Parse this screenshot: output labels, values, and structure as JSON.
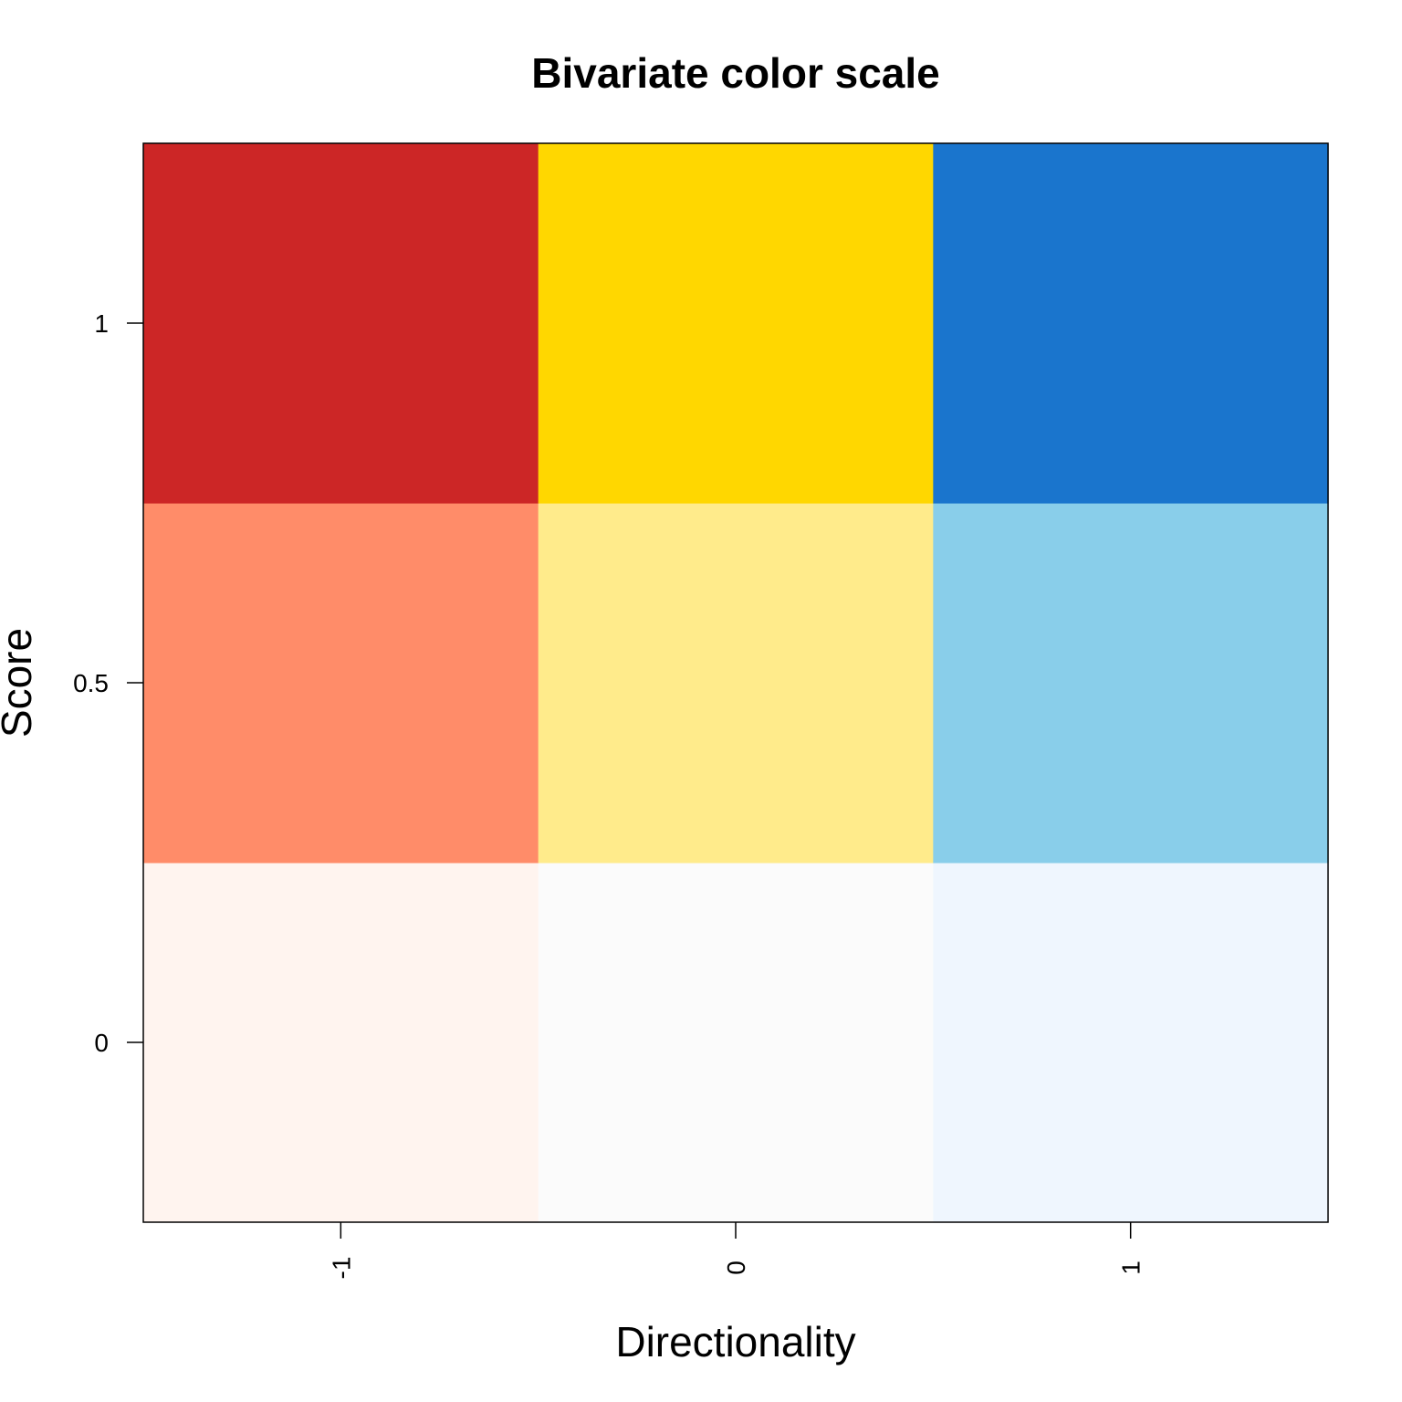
{
  "chart_data": {
    "type": "heatmap",
    "title": "Bivariate color scale",
    "xlabel": "Directionality",
    "ylabel": "Score",
    "x": [
      -1,
      0,
      1
    ],
    "y": [
      0,
      0.5,
      1
    ],
    "x_tick_labels": [
      "-1",
      "0",
      "1"
    ],
    "y_tick_labels": [
      "0",
      "0.5",
      "1"
    ],
    "xlim": [
      -1.5,
      1.5
    ],
    "ylim": [
      -0.25,
      1.25
    ],
    "grid": false,
    "cells": [
      {
        "x": -1,
        "y": 0,
        "color": "#FFF4EF"
      },
      {
        "x": 0,
        "y": 0,
        "color": "#FBFBFB"
      },
      {
        "x": 1,
        "y": 0,
        "color": "#EFF6FE"
      },
      {
        "x": -1,
        "y": 0.5,
        "color": "#FF8C69"
      },
      {
        "x": 0,
        "y": 0.5,
        "color": "#FFEB8B"
      },
      {
        "x": 1,
        "y": 0.5,
        "color": "#89CEEA"
      },
      {
        "x": -1,
        "y": 1,
        "color": "#CC2626"
      },
      {
        "x": 0,
        "y": 1,
        "color": "#FFD700"
      },
      {
        "x": 1,
        "y": 1,
        "color": "#1A75CD"
      }
    ]
  }
}
